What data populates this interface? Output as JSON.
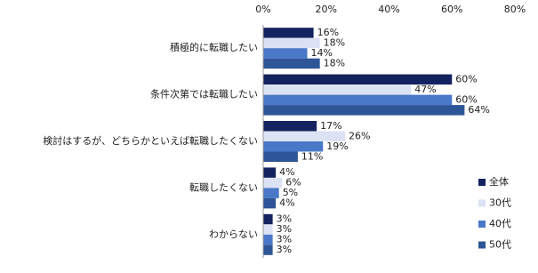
{
  "chart_data": {
    "type": "hbar",
    "categories": [
      "積極的に転職したい",
      "条件次第では転職したい",
      "検討はするが、どちらかといえば転職したくない",
      "転職したくない",
      "わからない"
    ],
    "series": [
      {
        "name": "全体",
        "color": "#14225f",
        "values": [
          16,
          60,
          17,
          4,
          3
        ],
        "value_labels": [
          "16%",
          "60%",
          "17%",
          "4%",
          "3%"
        ]
      },
      {
        "name": "30代",
        "color": "#dbe2f3",
        "values": [
          18,
          47,
          26,
          6,
          3
        ],
        "value_labels": [
          "18%",
          "47%",
          "26%",
          "6%",
          "3%"
        ]
      },
      {
        "name": "40代",
        "color": "#4a78c8",
        "values": [
          14,
          60,
          19,
          5,
          3
        ],
        "value_labels": [
          "14%",
          "60%",
          "19%",
          "5%",
          "3%"
        ]
      },
      {
        "name": "50代",
        "color": "#2e5597",
        "values": [
          18,
          64,
          11,
          4,
          3
        ],
        "value_labels": [
          "18%",
          "64%",
          "11%",
          "4%",
          "3%"
        ]
      }
    ],
    "xlim": [
      0,
      80
    ],
    "xticks": [
      {
        "value": 0,
        "label": "0%"
      },
      {
        "value": 20,
        "label": "20%"
      },
      {
        "value": 40,
        "label": "40%"
      },
      {
        "value": 60,
        "label": "60%"
      },
      {
        "value": 80,
        "label": "80%"
      }
    ],
    "legend": "right"
  }
}
